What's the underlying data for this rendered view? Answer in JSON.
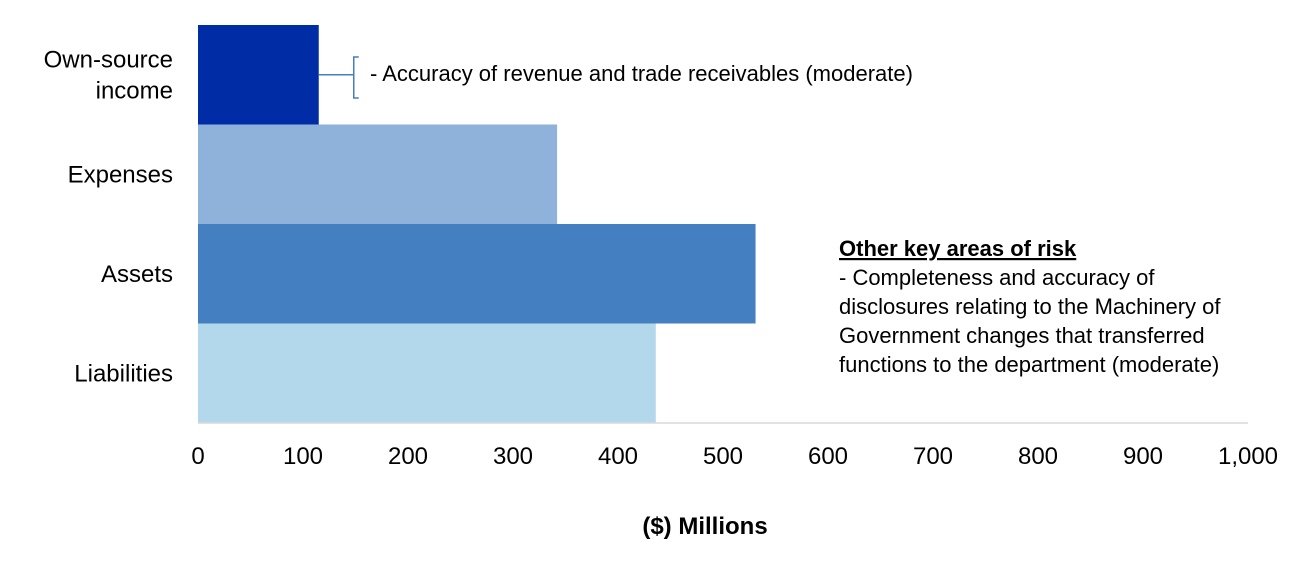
{
  "chart_data": {
    "type": "bar",
    "orientation": "horizontal",
    "categories": [
      "Own-source income",
      "Expenses",
      "Assets",
      "Liabilities"
    ],
    "category_label_lines": [
      [
        "Own-source",
        "income"
      ],
      [
        "Expenses"
      ],
      [
        "Assets"
      ],
      [
        "Liabilities"
      ]
    ],
    "values": [
      115,
      342,
      531,
      436
    ],
    "colors": [
      "#002da5",
      "#8fb2db",
      "#447fc1",
      "#b3d8ec"
    ],
    "xlim": [
      0,
      1000
    ],
    "xticks": [
      0,
      100,
      200,
      300,
      400,
      500,
      600,
      700,
      800,
      900,
      1000
    ],
    "xtick_labels": [
      "0",
      "100",
      "200",
      "300",
      "400",
      "500",
      "600",
      "700",
      "800",
      "900",
      "1,000"
    ],
    "xlabel": "($) Millions",
    "grid": false,
    "annotations": {
      "bracket_note": "- Accuracy of revenue and trade receivables (moderate)",
      "other_risk": {
        "heading": "Other key areas of risk",
        "lines": [
          "- Completeness and accuracy of",
          "disclosures relating to the Machinery of",
          "Government changes that transferred",
          "functions to the department (moderate)"
        ]
      }
    },
    "bracket_color": "#447fc1",
    "axis_color": "#d9d9d9"
  }
}
